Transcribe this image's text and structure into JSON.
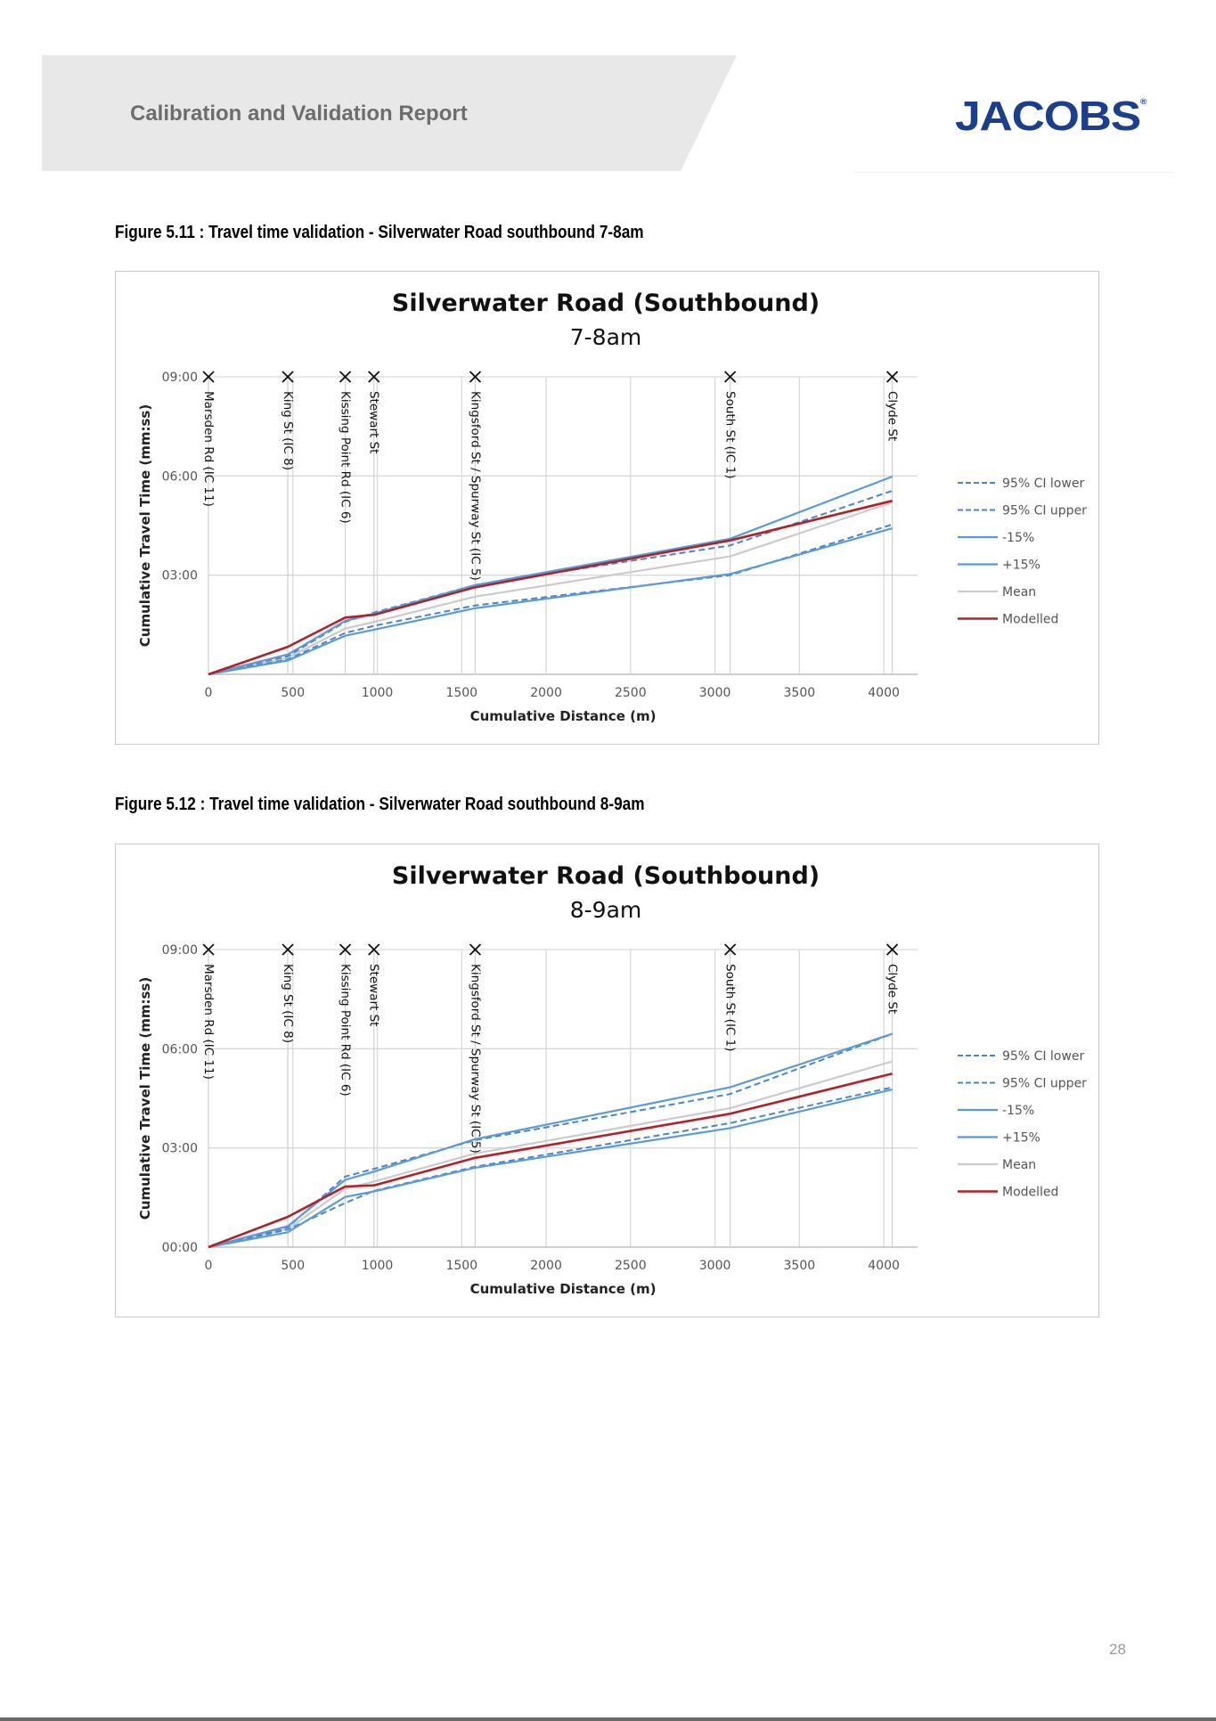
{
  "header": {
    "report_title": "Calibration and Validation Report",
    "logo_text": "JACOBS",
    "logo_mark": "®"
  },
  "page_number": "28",
  "colors": {
    "ci": "#4a86c5",
    "pct15": "#5b9bd5",
    "mean": "#cbcbcb",
    "modelled": "#b22028",
    "grid": "#d9d9d9"
  },
  "figures": [
    {
      "caption": "Figure 5.11 : Travel time validation - Silverwater Road southbound 7-8am",
      "chart_data": {
        "type": "line",
        "title": "Silverwater Road (Southbound)",
        "subtitle": "7-8am",
        "xlabel": "Cumulative Distance (m)",
        "ylabel": "Cumulative Travel Time (mm:ss)",
        "xlim": [
          0,
          4200
        ],
        "ylim": [
          0,
          540
        ],
        "x_ticks": [
          "0",
          "500",
          "1000",
          "1500",
          "2000",
          "2500",
          "3000",
          "3500",
          "4000"
        ],
        "y_ticks": [
          {
            "v": 180,
            "label": "03:00"
          },
          {
            "v": 360,
            "label": "06:00"
          },
          {
            "v": 540,
            "label": "09:00"
          }
        ],
        "grid": true,
        "legend_position": "right",
        "intersections": [
          {
            "x": 0,
            "label": "Marsden Rd (IC 11)"
          },
          {
            "x": 470,
            "label": "King St (IC 8)"
          },
          {
            "x": 810,
            "label": "Kissing Point Rd (IC 6)"
          },
          {
            "x": 980,
            "label": "Stewart St"
          },
          {
            "x": 1580,
            "label": "Kingsford St / Spurway St (IC 5)"
          },
          {
            "x": 3090,
            "label": "South St (IC 1)"
          },
          {
            "x": 4050,
            "label": "Clyde St"
          }
        ],
        "series": [
          {
            "name": "95% CI lower",
            "style": "ci",
            "points": [
              [
                0,
                0
              ],
              [
                470,
                27
              ],
              [
                810,
                75
              ],
              [
                980,
                88
              ],
              [
                1580,
                125
              ],
              [
                3090,
                180
              ],
              [
                4050,
                272
              ]
            ]
          },
          {
            "name": "95% CI upper",
            "style": "ci",
            "points": [
              [
                0,
                0
              ],
              [
                470,
                33
              ],
              [
                810,
                95
              ],
              [
                980,
                112
              ],
              [
                1580,
                162
              ],
              [
                3090,
                234
              ],
              [
                4050,
                333
              ]
            ]
          },
          {
            "name": "-15%",
            "style": "pct",
            "points": [
              [
                0,
                0
              ],
              [
                470,
                25
              ],
              [
                810,
                70
              ],
              [
                980,
                81
              ],
              [
                1580,
                120
              ],
              [
                3090,
                182
              ],
              [
                4050,
                265
              ]
            ]
          },
          {
            "name": "+15%",
            "style": "pct",
            "points": [
              [
                0,
                0
              ],
              [
                470,
                36
              ],
              [
                810,
                97
              ],
              [
                980,
                110
              ],
              [
                1580,
                162
              ],
              [
                3090,
                246
              ],
              [
                4050,
                359
              ]
            ]
          },
          {
            "name": "Mean",
            "style": "mean",
            "points": [
              [
                0,
                0
              ],
              [
                470,
                30
              ],
              [
                810,
                83
              ],
              [
                980,
                95
              ],
              [
                1580,
                141
              ],
              [
                3090,
                214
              ],
              [
                4050,
                312
              ]
            ]
          },
          {
            "name": "Modelled",
            "style": "modelled",
            "points": [
              [
                0,
                0
              ],
              [
                470,
                50
              ],
              [
                810,
                103
              ],
              [
                980,
                108
              ],
              [
                1580,
                158
              ],
              [
                3090,
                243
              ],
              [
                4050,
                315
              ]
            ]
          }
        ]
      }
    },
    {
      "caption": "Figure 5.12 : Travel time validation - Silverwater Road southbound 8-9am",
      "chart_data": {
        "type": "line",
        "title": "Silverwater Road (Southbound)",
        "subtitle": "8-9am",
        "xlabel": "Cumulative Distance (m)",
        "ylabel": "Cumulative Travel Time (mm:ss)",
        "xlim": [
          0,
          4200
        ],
        "ylim": [
          0,
          540
        ],
        "x_ticks": [
          "0",
          "500",
          "1000",
          "1500",
          "2000",
          "2500",
          "3000",
          "3500",
          "4000"
        ],
        "y_ticks": [
          {
            "v": 0,
            "label": "00:00"
          },
          {
            "v": 180,
            "label": "03:00"
          },
          {
            "v": 360,
            "label": "06:00"
          },
          {
            "v": 540,
            "label": "09:00"
          }
        ],
        "grid": true,
        "legend_position": "right",
        "intersections": [
          {
            "x": 0,
            "label": "Marsden Rd (IC 11)"
          },
          {
            "x": 470,
            "label": "King St (IC 8)"
          },
          {
            "x": 810,
            "label": "Kissing Point Rd (IC 6)"
          },
          {
            "x": 980,
            "label": "Stewart St"
          },
          {
            "x": 1580,
            "label": "Kingsford St / Spurway St (IC 5)"
          },
          {
            "x": 3090,
            "label": "South St (IC 1)"
          },
          {
            "x": 4050,
            "label": "Clyde St"
          }
        ],
        "series": [
          {
            "name": "95% CI lower",
            "style": "ci",
            "points": [
              [
                0,
                0
              ],
              [
                470,
                32
              ],
              [
                810,
                80
              ],
              [
                980,
                102
              ],
              [
                1580,
                146
              ],
              [
                3090,
                225
              ],
              [
                4050,
                290
              ]
            ]
          },
          {
            "name": "95% CI upper",
            "style": "ci",
            "points": [
              [
                0,
                0
              ],
              [
                470,
                36
              ],
              [
                810,
                128
              ],
              [
                980,
                142
              ],
              [
                1580,
                194
              ],
              [
                3090,
                278
              ],
              [
                4050,
                387
              ]
            ]
          },
          {
            "name": "-15%",
            "style": "pct",
            "points": [
              [
                0,
                0
              ],
              [
                470,
                27
              ],
              [
                810,
                91
              ],
              [
                980,
                101
              ],
              [
                1580,
                144
              ],
              [
                3090,
                216
              ],
              [
                4050,
                286
              ]
            ]
          },
          {
            "name": "+15%",
            "style": "pct",
            "points": [
              [
                0,
                0
              ],
              [
                470,
                38
              ],
              [
                810,
                122
              ],
              [
                980,
                137
              ],
              [
                1580,
                196
              ],
              [
                3090,
                290
              ],
              [
                4050,
                387
              ]
            ]
          },
          {
            "name": "Mean",
            "style": "mean",
            "points": [
              [
                0,
                0
              ],
              [
                470,
                33
              ],
              [
                810,
                106
              ],
              [
                980,
                119
              ],
              [
                1580,
                170
              ],
              [
                3090,
                252
              ],
              [
                4050,
                337
              ]
            ]
          },
          {
            "name": "Modelled",
            "style": "modelled",
            "points": [
              [
                0,
                0
              ],
              [
                470,
                55
              ],
              [
                810,
                110
              ],
              [
                980,
                112
              ],
              [
                1580,
                162
              ],
              [
                3090,
                242
              ],
              [
                4050,
                315
              ]
            ]
          }
        ]
      }
    }
  ]
}
